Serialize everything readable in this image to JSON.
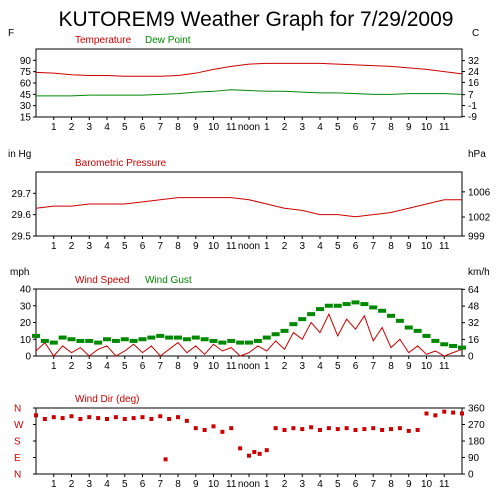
{
  "page_title": "KUTOREM9 Weather Graph for 7/29/2009",
  "hour_labels": [
    "1",
    "2",
    "3",
    "4",
    "5",
    "6",
    "7",
    "8",
    "9",
    "10",
    "11",
    "noon",
    "1",
    "2",
    "3",
    "4",
    "5",
    "6",
    "7",
    "8",
    "9",
    "10",
    "11"
  ],
  "colors": {
    "red": "#cc0000",
    "green": "#008800",
    "axis": "#000000",
    "background": "#ffffff"
  },
  "chart_data": [
    {
      "type": "line",
      "name": "temperature-dewpoint",
      "legend": [
        "Temperature",
        "Dew Point"
      ],
      "legend_placement": "top-left",
      "left_unit": "F",
      "right_unit": "C",
      "ylim": [
        15,
        105
      ],
      "left_ticks": [
        90,
        75,
        60,
        45,
        30,
        15
      ],
      "right_ticks": [
        {
          "label": "32",
          "f": 89.6
        },
        {
          "label": "24",
          "f": 75.2
        },
        {
          "label": "16",
          "f": 60.8
        },
        {
          "label": "7",
          "f": 44.6
        },
        {
          "label": "-1",
          "f": 30.2
        },
        {
          "label": "-9",
          "f": 15.8
        }
      ],
      "x_hours": [
        0,
        1,
        2,
        3,
        4,
        5,
        6,
        7,
        8,
        9,
        10,
        11,
        12,
        13,
        14,
        15,
        16,
        17,
        18,
        19,
        20,
        21,
        22,
        23,
        24
      ],
      "series": [
        {
          "name": "Temperature",
          "color": "#cc0000",
          "values": [
            74,
            73,
            71,
            70,
            70,
            69,
            69,
            69,
            70,
            73,
            78,
            82,
            85,
            86,
            86,
            86,
            86,
            85,
            84,
            83,
            82,
            80,
            78,
            75,
            72
          ]
        },
        {
          "name": "Dew Point",
          "color": "#008800",
          "values": [
            43,
            43,
            43,
            44,
            44,
            44,
            44,
            45,
            46,
            48,
            49,
            51,
            50,
            49,
            49,
            48,
            47,
            47,
            46,
            45,
            45,
            46,
            46,
            46,
            45
          ]
        }
      ]
    },
    {
      "type": "line",
      "name": "barometric-pressure",
      "legend": [
        "Barometric Pressure"
      ],
      "legend_placement": "top-left",
      "left_unit": "in Hg",
      "right_unit": "hPa",
      "ylim": [
        29.5,
        29.8
      ],
      "left_ticks": [
        "29.7",
        "29.6",
        "29.5"
      ],
      "right_ticks": [
        {
          "label": "1006",
          "inhg": 29.707
        },
        {
          "label": "1002",
          "inhg": 29.589
        },
        {
          "label": "999",
          "inhg": 29.5
        }
      ],
      "x_hours": [
        0,
        1,
        2,
        3,
        4,
        5,
        6,
        7,
        8,
        9,
        10,
        11,
        12,
        13,
        14,
        15,
        16,
        17,
        18,
        19,
        20,
        21,
        22,
        23,
        24
      ],
      "series": [
        {
          "name": "Barometric Pressure",
          "color": "#cc0000",
          "values": [
            29.63,
            29.64,
            29.64,
            29.65,
            29.65,
            29.65,
            29.66,
            29.67,
            29.68,
            29.68,
            29.68,
            29.68,
            29.67,
            29.65,
            29.63,
            29.62,
            29.6,
            29.6,
            29.59,
            29.6,
            29.61,
            29.63,
            29.65,
            29.67,
            29.67
          ]
        }
      ]
    },
    {
      "type": "line",
      "name": "wind-speed-gust",
      "legend": [
        "Wind Speed",
        "Wind Gust"
      ],
      "legend_placement": "top-left",
      "left_unit": "mph",
      "right_unit": "km/h",
      "ylim": [
        0,
        40
      ],
      "left_ticks": [
        40,
        30,
        20,
        10,
        0
      ],
      "right_ticks": [
        {
          "label": "64",
          "mph": 39.8
        },
        {
          "label": "48",
          "mph": 29.8
        },
        {
          "label": "32",
          "mph": 19.9
        },
        {
          "label": "16",
          "mph": 9.9
        },
        {
          "label": "0",
          "mph": 0
        }
      ],
      "wind_speed_hours": [
        0,
        0.5,
        1,
        1.5,
        2,
        2.5,
        3,
        3.5,
        4,
        4.5,
        5,
        5.5,
        6,
        6.5,
        7,
        7.5,
        8,
        8.5,
        9,
        9.5,
        10,
        10.5,
        11,
        11.5,
        12,
        12.5,
        13,
        13.5,
        14,
        14.5,
        15,
        15.5,
        16,
        16.5,
        17,
        17.5,
        18,
        18.5,
        19,
        19.5,
        20,
        20.5,
        21,
        21.5,
        22,
        22.5,
        23,
        23.5,
        24
      ],
      "wind_speed": [
        3,
        8,
        0,
        6,
        2,
        5,
        0,
        4,
        6,
        0,
        3,
        7,
        2,
        6,
        0,
        4,
        8,
        2,
        6,
        1,
        7,
        3,
        5,
        0,
        2,
        6,
        3,
        9,
        4,
        14,
        10,
        20,
        14,
        25,
        12,
        22,
        16,
        24,
        9,
        17,
        5,
        10,
        2,
        6,
        1,
        3,
        0,
        2,
        4
      ],
      "wind_gust_hours": [
        0,
        0.5,
        1,
        1.5,
        2,
        2.5,
        3,
        3.5,
        4,
        4.5,
        5,
        5.5,
        6,
        6.5,
        7,
        7.5,
        8,
        8.5,
        9,
        9.5,
        10,
        10.5,
        11,
        11.5,
        12,
        12.5,
        13,
        13.5,
        14,
        14.5,
        15,
        15.5,
        16,
        16.5,
        17,
        17.5,
        18,
        18.5,
        19,
        19.5,
        20,
        20.5,
        21,
        21.5,
        22,
        22.5,
        23,
        23.5,
        24
      ],
      "wind_gust": [
        12,
        9,
        8,
        11,
        10,
        9,
        9,
        8,
        10,
        9,
        10,
        9,
        10,
        11,
        12,
        11,
        11,
        10,
        11,
        10,
        9,
        8,
        9,
        8,
        8,
        9,
        11,
        13,
        15,
        19,
        22,
        25,
        28,
        30,
        30,
        31,
        32,
        31,
        29,
        27,
        24,
        21,
        17,
        15,
        12,
        9,
        7,
        6,
        5
      ],
      "series": [
        {
          "name": "Wind Speed",
          "color": "#cc0000"
        },
        {
          "name": "Wind Gust",
          "color": "#008800"
        }
      ]
    },
    {
      "type": "scatter",
      "name": "wind-direction",
      "legend": [
        "Wind Dir (deg)"
      ],
      "legend_placement": "top-left",
      "ylim": [
        0,
        360
      ],
      "left_ticks": [
        {
          "label": "N",
          "deg": 360
        },
        {
          "label": "W",
          "deg": 270
        },
        {
          "label": "S",
          "deg": 180
        },
        {
          "label": "E",
          "deg": 90
        },
        {
          "label": "N",
          "deg": 0
        }
      ],
      "right_ticks": [
        360,
        270,
        180,
        90,
        0
      ],
      "x_hours": [
        0,
        0.5,
        1,
        1.5,
        2,
        2.5,
        3,
        3.5,
        4,
        4.5,
        5,
        5.5,
        6,
        6.5,
        7,
        7.3,
        7.5,
        8,
        8.5,
        9,
        9.5,
        10,
        10.5,
        11,
        11.5,
        12,
        12.3,
        12.6,
        13,
        13.5,
        14,
        14.5,
        15,
        15.5,
        16,
        16.5,
        17,
        17.5,
        18,
        18.5,
        19,
        19.5,
        20,
        20.5,
        21,
        21.5,
        22,
        22.5,
        23,
        23.5,
        24
      ],
      "values": [
        320,
        300,
        310,
        305,
        315,
        300,
        310,
        305,
        300,
        310,
        300,
        305,
        310,
        300,
        315,
        80,
        300,
        310,
        290,
        250,
        240,
        260,
        230,
        250,
        140,
        100,
        120,
        110,
        130,
        250,
        240,
        250,
        245,
        255,
        240,
        250,
        245,
        250,
        240,
        245,
        250,
        240,
        245,
        250,
        235,
        240,
        330,
        320,
        340,
        335,
        330
      ]
    }
  ]
}
